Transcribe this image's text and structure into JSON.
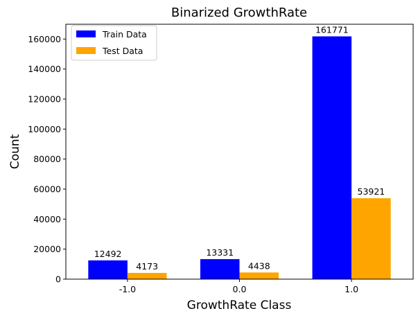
{
  "chart_data": {
    "type": "bar",
    "title": "Binarized GrowthRate",
    "xlabel": "GrowthRate Class",
    "ylabel": "Count",
    "categories": [
      "-1.0",
      "0.0",
      "1.0"
    ],
    "series": [
      {
        "name": "Train Data",
        "values": [
          12492,
          13331,
          161771
        ],
        "color": "#0000ff"
      },
      {
        "name": "Test Data",
        "values": [
          4173,
          4438,
          53921
        ],
        "color": "#ffa500"
      }
    ],
    "ylim": [
      0,
      169859
    ],
    "yticks": [
      0,
      20000,
      40000,
      60000,
      80000,
      100000,
      120000,
      140000,
      160000
    ],
    "ytick_labels": [
      "0",
      "20000",
      "40000",
      "60000",
      "80000",
      "100000",
      "120000",
      "140000",
      "160000"
    ],
    "grid": false,
    "legend_position": "top-left",
    "data_labels": true
  }
}
